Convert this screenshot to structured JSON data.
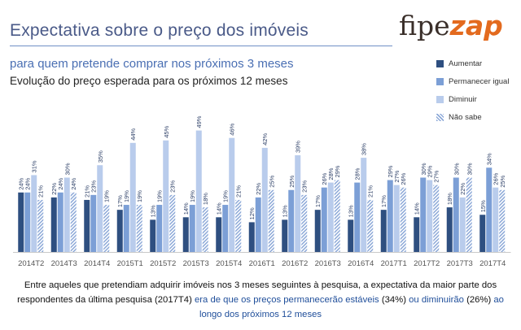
{
  "header": {
    "title": "Expectativa sobre o preço dos imóveis",
    "subtitle": "para quem pretende comprar nos próximos 3 meses",
    "subtitle2": "Evolução do preço esperada para os próximos 12 meses"
  },
  "logo": {
    "part1": "fipe",
    "part2": "zap"
  },
  "footnote": {
    "part1": "Entre aqueles que pretendiam adquirir imóveis nos 3 meses seguintes à pesquisa, a expectativa da maior parte dos respondentes da última pesquisa (2017T4) ",
    "part2": "era de que os preços permanecerão estáveis",
    "part3": " (34%) ",
    "part4": "ou diminuirão",
    "part5": " (26%) ",
    "part6": "ao longo dos próximos 12 meses"
  },
  "colors": {
    "aumentar": "#2e4f80",
    "permanecer": "#7c9fd6",
    "diminuir": "#b9ccec",
    "nao_sabe": "#8da9d8"
  },
  "chart_data": {
    "type": "bar",
    "categories": [
      "2014T2",
      "2014T3",
      "2014T4",
      "2015T1",
      "2015T2",
      "2015T3",
      "2015T4",
      "2016T1",
      "2016T2",
      "2016T3",
      "2016T4",
      "2017T1",
      "2017T2",
      "2017T3",
      "2017T4"
    ],
    "series": [
      {
        "name": "Aumentar",
        "values": [
          24,
          22,
          21,
          17,
          13,
          14,
          14,
          12,
          13,
          17,
          13,
          17,
          14,
          18,
          15
        ]
      },
      {
        "name": "Permanecer igual",
        "values": [
          24,
          24,
          23,
          19,
          19,
          19,
          19,
          22,
          25,
          26,
          28,
          29,
          30,
          30,
          34
        ]
      },
      {
        "name": "Diminuir",
        "values": [
          31,
          30,
          35,
          44,
          45,
          49,
          46,
          42,
          39,
          28,
          38,
          27,
          29,
          22,
          26
        ]
      },
      {
        "name": "Não sabe",
        "values": [
          21,
          24,
          19,
          19,
          23,
          18,
          21,
          25,
          23,
          29,
          21,
          26,
          27,
          30,
          25
        ]
      }
    ],
    "value_suffix": "%",
    "ylim": [
      0,
      55
    ],
    "legend_position": "right",
    "grid": false
  }
}
